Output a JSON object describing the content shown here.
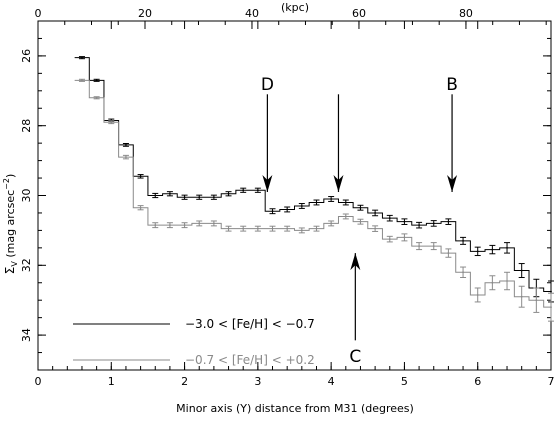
{
  "chart_data": {
    "type": "line",
    "title": "",
    "xlabel": "Minor axis (Y) distance from M31 (degrees)",
    "top_xlabel": "(kpc)",
    "ylabel_main": "Σ",
    "ylabel_sub": "V",
    "ylabel_rest": " (mag arcsec",
    "ylabel_sup": "−2",
    "ylabel_close": ")",
    "xlim": [
      0,
      7
    ],
    "ylim": [
      35,
      25
    ],
    "y_inverted": true,
    "x_ticks": [
      "0",
      "1",
      "2",
      "3",
      "4",
      "5",
      "6",
      "7"
    ],
    "top_ticks": [
      "0",
      "20",
      "40",
      "60",
      "80"
    ],
    "top_tick_values_kpc": [
      0,
      20,
      40,
      60,
      80
    ],
    "kpc_per_degree": 13.7,
    "y_ticks": [
      "26",
      "28",
      "30",
      "32",
      "34"
    ],
    "series": [
      {
        "name": "−3.0 < [Fe/H] < −0.7",
        "color": "#000000",
        "x": [
          0.6,
          0.8,
          1.0,
          1.2,
          1.4,
          1.6,
          1.8,
          2.0,
          2.2,
          2.4,
          2.6,
          2.8,
          3.0,
          3.2,
          3.4,
          3.6,
          3.8,
          4.0,
          4.2,
          4.4,
          4.6,
          4.8,
          5.0,
          5.2,
          5.4,
          5.6,
          5.8,
          6.0,
          6.2,
          6.4,
          6.6,
          6.8,
          7.0
        ],
        "y": [
          26.05,
          26.7,
          27.85,
          28.55,
          29.45,
          30.0,
          29.95,
          30.05,
          30.05,
          30.05,
          29.95,
          29.85,
          29.85,
          30.45,
          30.4,
          30.3,
          30.2,
          30.1,
          30.2,
          30.35,
          30.5,
          30.65,
          30.75,
          30.85,
          30.8,
          30.75,
          31.3,
          31.6,
          31.55,
          31.5,
          32.15,
          32.65,
          32.75
        ],
        "err": [
          0.03,
          0.03,
          0.04,
          0.04,
          0.05,
          0.06,
          0.06,
          0.06,
          0.06,
          0.06,
          0.06,
          0.06,
          0.06,
          0.07,
          0.07,
          0.07,
          0.07,
          0.07,
          0.07,
          0.07,
          0.08,
          0.08,
          0.08,
          0.08,
          0.08,
          0.08,
          0.1,
          0.12,
          0.12,
          0.15,
          0.2,
          0.25,
          0.3
        ]
      },
      {
        "name": "−0.7 < [Fe/H] < +0.2",
        "color": "#8a8a8a",
        "x": [
          0.6,
          0.8,
          1.0,
          1.2,
          1.4,
          1.6,
          1.8,
          2.0,
          2.2,
          2.4,
          2.6,
          2.8,
          3.0,
          3.2,
          3.4,
          3.6,
          3.8,
          4.0,
          4.2,
          4.4,
          4.6,
          4.8,
          5.0,
          5.2,
          5.4,
          5.6,
          5.8,
          6.0,
          6.2,
          6.4,
          6.6,
          6.8,
          7.0
        ],
        "y": [
          26.7,
          27.2,
          27.9,
          28.9,
          30.35,
          30.85,
          30.85,
          30.85,
          30.8,
          30.8,
          30.95,
          30.95,
          30.95,
          30.95,
          30.95,
          31.0,
          30.95,
          30.8,
          30.6,
          30.75,
          30.95,
          31.25,
          31.2,
          31.45,
          31.45,
          31.65,
          32.2,
          32.85,
          32.5,
          32.45,
          32.9,
          33.0,
          33.2
        ],
        "err": [
          0.03,
          0.03,
          0.04,
          0.05,
          0.06,
          0.07,
          0.07,
          0.07,
          0.07,
          0.07,
          0.07,
          0.07,
          0.07,
          0.07,
          0.07,
          0.07,
          0.07,
          0.07,
          0.07,
          0.07,
          0.08,
          0.08,
          0.1,
          0.1,
          0.1,
          0.12,
          0.15,
          0.2,
          0.2,
          0.25,
          0.3,
          0.35,
          0.4
        ]
      }
    ],
    "annotations": [
      {
        "label": "D",
        "x": 3.13,
        "y_start": 27.1,
        "y_end": 29.9,
        "direction": "down",
        "label_y": 26.8
      },
      {
        "label": "",
        "x": 4.1,
        "y_start": 27.1,
        "y_end": 29.9,
        "direction": "down",
        "label_y": 26.8
      },
      {
        "label": "B",
        "x": 5.65,
        "y_start": 27.1,
        "y_end": 29.9,
        "direction": "down",
        "label_y": 26.8
      },
      {
        "label": "C",
        "x": 4.33,
        "y_start": 34.15,
        "y_end": 31.65,
        "direction": "up",
        "label_y": 34.6
      }
    ],
    "grid": false,
    "legend_position": "bottom-left"
  }
}
